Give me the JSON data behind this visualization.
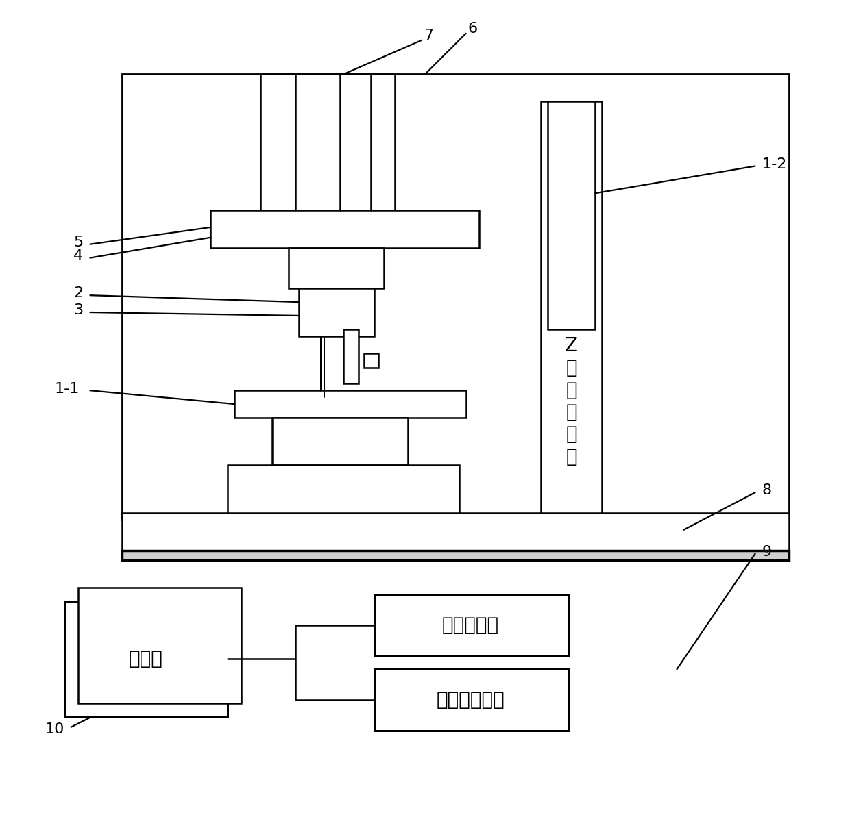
{
  "bg_color": "#ffffff",
  "line_color": "#000000",
  "lw": 1.8,
  "fig_width": 12.4,
  "fig_height": 11.96,
  "labels": {
    "z_stage": "Z\n方\n向\n位\n移\n台",
    "motion_ctrl": "运动控制器",
    "ipc": "工控机",
    "echem": "电化学工作站"
  }
}
